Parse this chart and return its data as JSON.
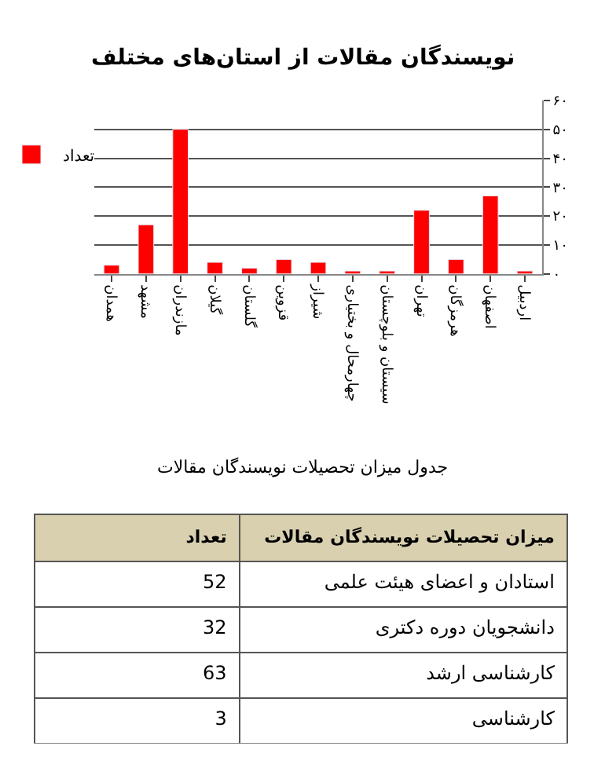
{
  "chart_data": [
    {
      "type": "bar",
      "title": "نویسندگان مقالات از استان‌های مختلف",
      "categories": [
        "همدان",
        "مشهد",
        "مازندران",
        "گیلان",
        "گلستان",
        "قزوین",
        "شیراز",
        "چهارمحال و بختیاری",
        "سیستان و بلوچستان",
        "تهران",
        "هرمزگان",
        "اصفهان",
        "اردبیل"
      ],
      "series": [
        {
          "name": "تعداد",
          "color": "#ff0000",
          "values": [
            3,
            17,
            50,
            4,
            2,
            5,
            4,
            1,
            1,
            22,
            5,
            27,
            1
          ]
        }
      ],
      "ylim": [
        0,
        60
      ],
      "yticks": [
        {
          "value": 0,
          "label": "۰"
        },
        {
          "value": 10,
          "label": "۱۰"
        },
        {
          "value": 20,
          "label": "۲۰"
        },
        {
          "value": 30,
          "label": "۳۰"
        },
        {
          "value": 40,
          "label": "۴۰"
        },
        {
          "value": 50,
          "label": "۵۰"
        },
        {
          "value": 60,
          "label": "۶۰"
        }
      ],
      "grid": "y",
      "legend": "left"
    },
    {
      "type": "other",
      "title": "جدول میزان تحصیلات نویسندگان مقالات",
      "xlabel": "تعداد",
      "ylabel": "میزان تحصیلات نویسندگان مقالات",
      "categories": [
        "استادان و اعضای هیئت علمی",
        "دانشجویان دوره دکتری",
        "کارشناسی ارشد",
        "کارشناسی"
      ],
      "values": [
        52,
        32,
        63,
        3
      ],
      "data_labels": true
    }
  ]
}
